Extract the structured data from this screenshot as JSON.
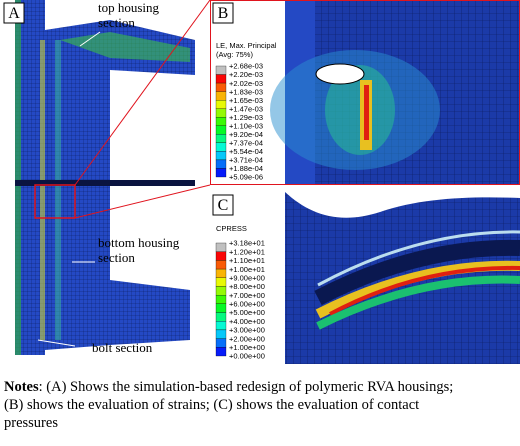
{
  "panels": [
    {
      "label": "A",
      "annotations": [
        [
          "top housing",
          "section"
        ],
        [
          "bottom housing",
          "section"
        ],
        [
          "bolt section"
        ]
      ]
    },
    {
      "label": "B",
      "legend": {
        "title": [
          "LE, Max. Principal",
          "(Avg: 75%)"
        ],
        "ticks": [
          "+2.68e-03",
          "+2.20e-03",
          "+2.02e-03",
          "+1.83e-03",
          "+1.65e-03",
          "+1.47e-03",
          "+1.29e-03",
          "+1.10e-03",
          "+9.20e-04",
          "+7.37e-04",
          "+5.54e-04",
          "+3.71e-04",
          "+1.88e-04",
          "+5.09e-06"
        ]
      }
    },
    {
      "label": "C",
      "legend": {
        "title": [
          "CPRESS"
        ],
        "ticks": [
          "+3.18e+01",
          "+1.20e+01",
          "+1.10e+01",
          "+1.00e+01",
          "+9.00e+00",
          "+8.00e+00",
          "+7.00e+00",
          "+6.00e+00",
          "+5.00e+00",
          "+4.00e+00",
          "+3.00e+00",
          "+2.00e+00",
          "+1.00e+00",
          "+0.00e+00"
        ]
      }
    }
  ],
  "notes": {
    "label": "Notes",
    "lines": [
      ": (A) Shows the simulation-based redesign of polymeric RVA housings;",
      "(B) shows the evaluation of strains; (C) shows the evaluation of contact",
      "pressures"
    ]
  }
}
